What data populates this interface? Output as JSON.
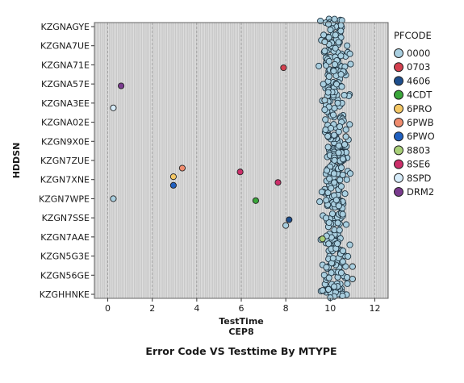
{
  "chart_data": {
    "type": "scatter",
    "title": "Error Code VS Testtime By MTYPE",
    "xlabel": "TestTime",
    "xlabel_sub": "CEP8",
    "ylabel": "HDDSN",
    "xlim": [
      -0.6,
      12.6
    ],
    "xticks": [
      0,
      2,
      4,
      6,
      8,
      10,
      12
    ],
    "y_categories": [
      "KZGNAGYE",
      "KZGNA7UE",
      "KZGNA71E",
      "KZGNA57E",
      "KZGNA3EE",
      "KZGNA02E",
      "KZGN9X0E",
      "KZGN7ZUE",
      "KZGN7XNE",
      "KZGN7WPE",
      "KZGN7SSE",
      "KZGN7AAE",
      "KZGN5G3E",
      "KZGN56GE",
      "KZGHHNKE"
    ],
    "legend_title": "PFCODE",
    "legend_position": "right",
    "grid": true,
    "series": [
      {
        "name": "0000",
        "color": "#a9cfe0",
        "points": [
          [
            0.25,
            9.0
          ],
          [
            8.0,
            10.4
          ],
          [
            9.75,
            3.85
          ],
          [
            9.75,
            0.8
          ],
          [
            10.7,
            5.75
          ],
          [
            11.0,
            12.55
          ],
          [
            11.0,
            13.2
          ]
        ]
      },
      {
        "name": "0703",
        "color": "#d4404f",
        "points": [
          [
            7.9,
            2.15
          ]
        ]
      },
      {
        "name": "4606",
        "color": "#1e4e8c",
        "points": [
          [
            8.15,
            10.1
          ]
        ]
      },
      {
        "name": "4CDT",
        "color": "#3aa63a",
        "points": [
          [
            6.65,
            9.1
          ]
        ]
      },
      {
        "name": "6PRO",
        "color": "#f5c865",
        "points": [
          [
            2.95,
            7.85
          ]
        ]
      },
      {
        "name": "6PWB",
        "color": "#f08c6e",
        "points": [
          [
            3.35,
            7.4
          ]
        ]
      },
      {
        "name": "6PWO",
        "color": "#2060c0",
        "points": [
          [
            2.95,
            8.3
          ]
        ]
      },
      {
        "name": "8803",
        "color": "#a8cf78",
        "points": [
          [
            9.65,
            11.1
          ]
        ]
      },
      {
        "name": "8SE6",
        "color": "#cc2e6a",
        "points": [
          [
            5.95,
            7.6
          ],
          [
            7.65,
            8.15
          ]
        ]
      },
      {
        "name": "8SPD",
        "color": "#d6ecfa",
        "points": [
          [
            0.25,
            4.25
          ]
        ]
      },
      {
        "name": "DRM2",
        "color": "#7a3b8e",
        "points": [
          [
            0.6,
            3.1
          ]
        ]
      }
    ],
    "dense_cluster": {
      "series": "0000",
      "x_center": 10.25,
      "x_spread": 0.75
    }
  }
}
